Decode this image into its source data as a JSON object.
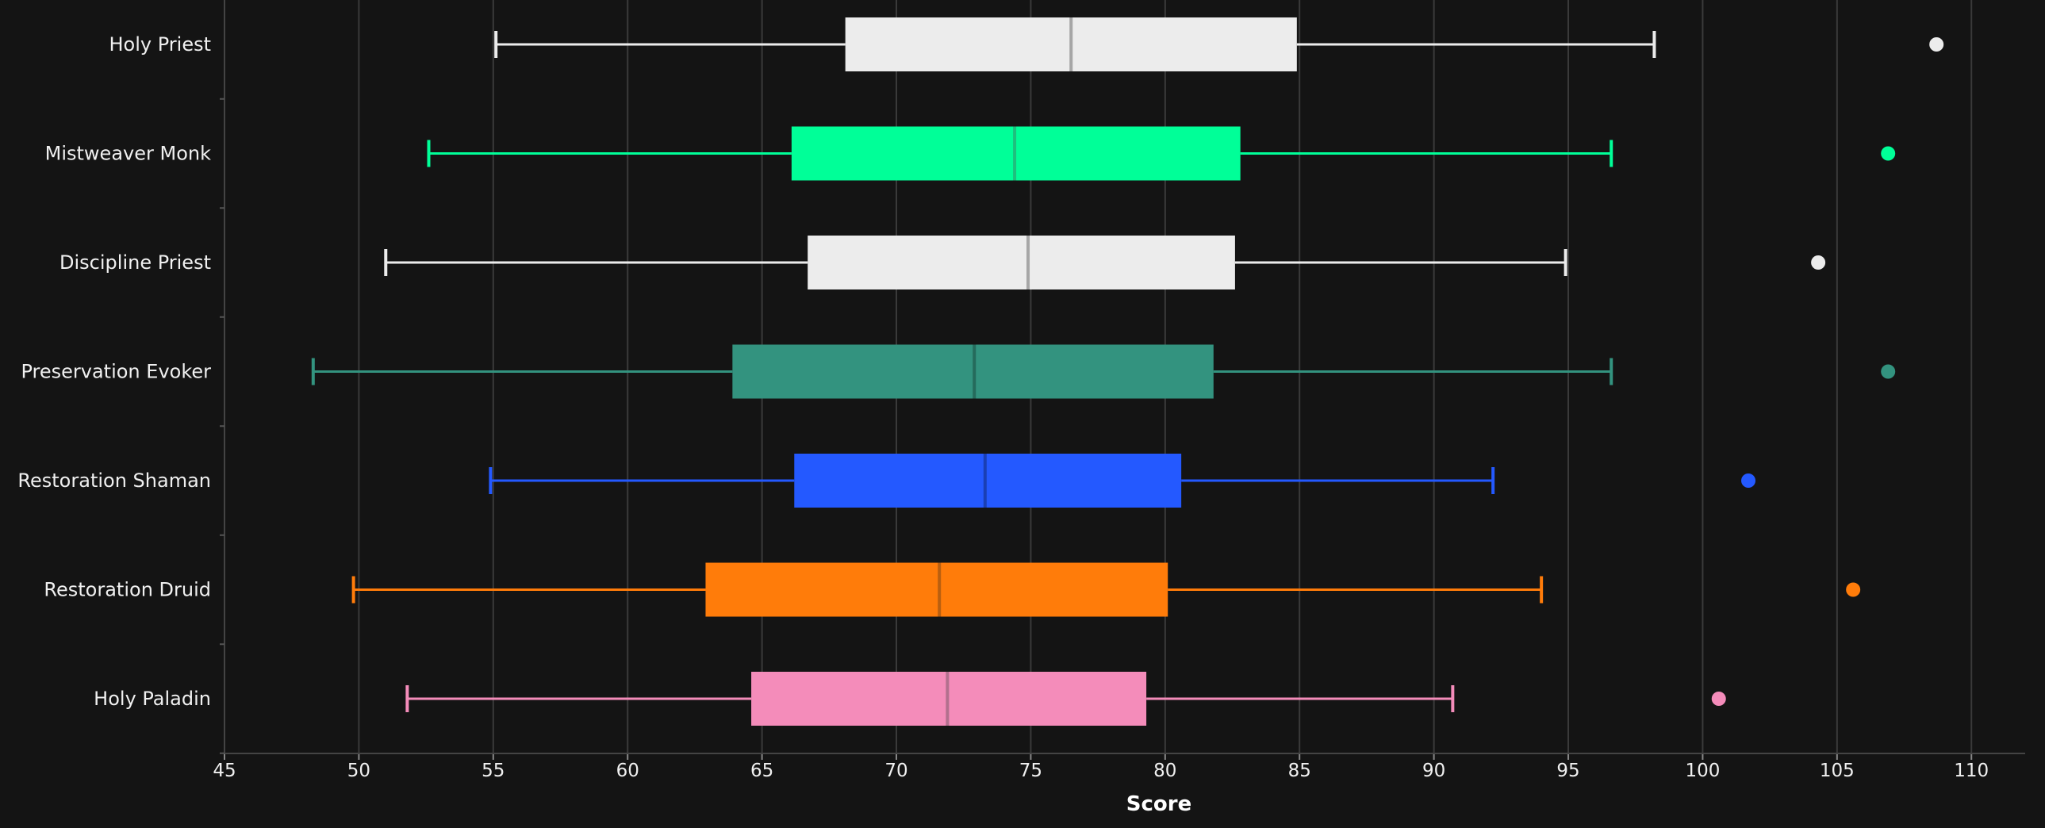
{
  "chart_data": {
    "type": "boxplot",
    "orientation": "horizontal",
    "title": "",
    "xlabel": "Score",
    "ylabel": "",
    "xlim": [
      45,
      112
    ],
    "x_ticks": [
      45,
      50,
      55,
      60,
      65,
      70,
      75,
      80,
      85,
      90,
      95,
      100,
      105,
      110
    ],
    "grid": "vertical",
    "legend": "none",
    "background": "#141414",
    "series": [
      {
        "name": "Holy Priest",
        "color": "#ececec",
        "median_color": "#a6a6a6",
        "whisker_low": 55.1,
        "q1": 68.1,
        "median": 76.5,
        "q3": 84.9,
        "whisker_high": 98.2,
        "outliers": [
          108.7
        ]
      },
      {
        "name": "Mistweaver Monk",
        "color": "#00ff98",
        "median_color": "#1fbf7e",
        "whisker_low": 52.6,
        "q1": 66.1,
        "median": 74.4,
        "q3": 82.8,
        "whisker_high": 96.6,
        "outliers": [
          106.9
        ]
      },
      {
        "name": "Discipline Priest",
        "color": "#ececec",
        "median_color": "#a6a6a6",
        "whisker_low": 51.0,
        "q1": 66.7,
        "median": 74.9,
        "q3": 82.6,
        "whisker_high": 94.9,
        "outliers": [
          104.3
        ]
      },
      {
        "name": "Preservation Evoker",
        "color": "#33937f",
        "median_color": "#256b5c",
        "whisker_low": 48.3,
        "q1": 63.9,
        "median": 72.9,
        "q3": 81.8,
        "whisker_high": 96.6,
        "outliers": [
          106.9
        ]
      },
      {
        "name": "Restoration Shaman",
        "color": "#2459ff",
        "median_color": "#1a3fb4",
        "whisker_low": 54.9,
        "q1": 66.2,
        "median": 73.3,
        "q3": 80.6,
        "whisker_high": 92.2,
        "outliers": [
          101.7
        ]
      },
      {
        "name": "Restoration Druid",
        "color": "#ff7c0a",
        "median_color": "#b95f10",
        "whisker_low": 49.8,
        "q1": 62.9,
        "median": 71.6,
        "q3": 80.1,
        "whisker_high": 94.0,
        "outliers": [
          105.6
        ]
      },
      {
        "name": "Holy Paladin",
        "color": "#f48cba",
        "median_color": "#b2708e",
        "whisker_low": 51.8,
        "q1": 64.6,
        "median": 71.9,
        "q3": 79.3,
        "whisker_high": 90.7,
        "outliers": [
          100.6
        ]
      }
    ]
  }
}
